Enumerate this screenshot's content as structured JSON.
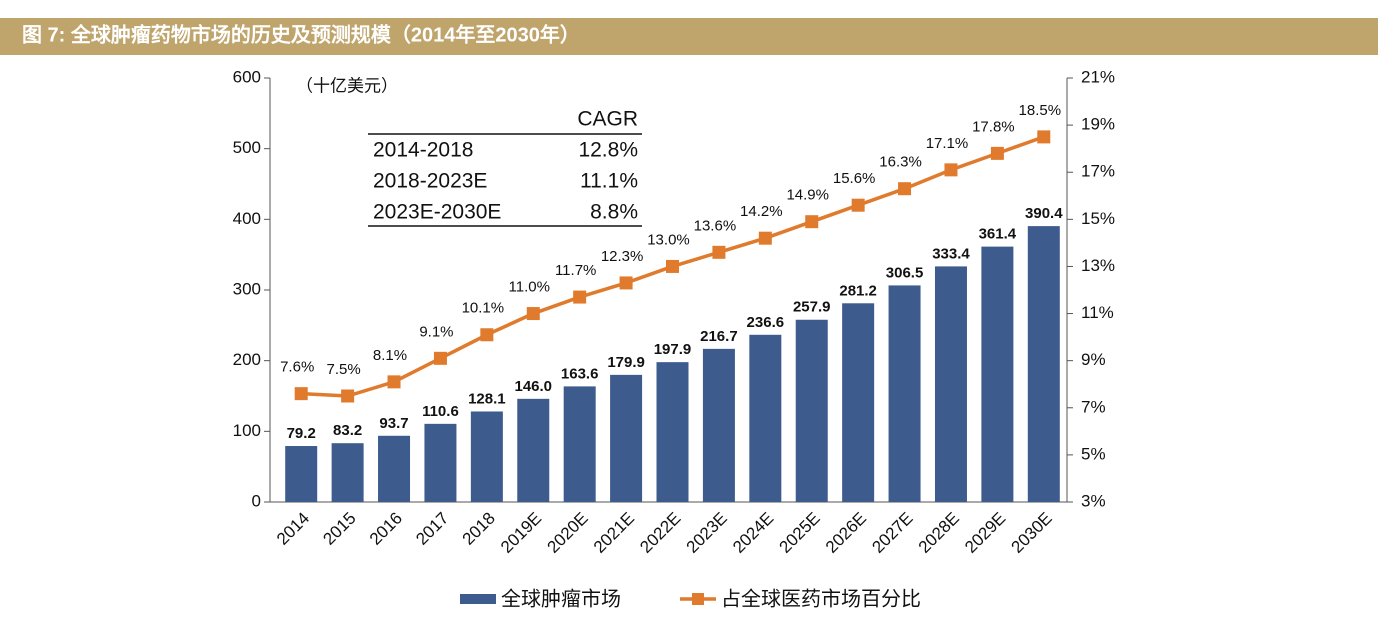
{
  "chart_data": {
    "type": "bar_line",
    "title": "图 7: 全球肿瘤药物市场的历史及预测规模（2014年至2030年）",
    "unit_note": "（十亿美元）",
    "categories": [
      "2014",
      "2015",
      "2016",
      "2017",
      "2018",
      "2019E",
      "2020E",
      "2021E",
      "2022E",
      "2023E",
      "2024E",
      "2025E",
      "2026E",
      "2027E",
      "2028E",
      "2029E",
      "2030E"
    ],
    "series": [
      {
        "name": "全球肿瘤市场",
        "color": "#3d5b8c",
        "type": "bar",
        "values": [
          79.2,
          83.2,
          93.7,
          110.6,
          128.1,
          146.0,
          163.6,
          179.9,
          197.9,
          216.7,
          236.6,
          257.9,
          281.2,
          306.5,
          333.4,
          361.4,
          390.4
        ],
        "value_labels": [
          "79.2",
          "83.2",
          "93.7",
          "110.6",
          "128.1",
          "146.0",
          "163.6",
          "179.9",
          "197.9",
          "216.7",
          "236.6",
          "257.9",
          "281.2",
          "306.5",
          "333.4",
          "361.4",
          "390.4"
        ]
      },
      {
        "name": "占全球医药市场百分比",
        "color": "#e07a2c",
        "type": "line",
        "axis": "y2",
        "values": [
          7.6,
          7.5,
          8.1,
          9.1,
          10.1,
          11.0,
          11.7,
          12.3,
          13.0,
          13.6,
          14.2,
          14.9,
          15.6,
          16.3,
          17.1,
          17.8,
          18.5
        ],
        "value_labels": [
          "7.6%",
          "7.5%",
          "8.1%",
          "9.1%",
          "10.1%",
          "11.0%",
          "11.7%",
          "12.3%",
          "13.0%",
          "13.6%",
          "14.2%",
          "14.9%",
          "15.6%",
          "16.3%",
          "17.1%",
          "17.8%",
          "18.5%"
        ]
      }
    ],
    "ylim": [
      0,
      600
    ],
    "yticks": [
      0,
      100,
      200,
      300,
      400,
      500,
      600
    ],
    "y2lim": [
      3,
      21
    ],
    "y2ticks": [
      {
        "value": 3,
        "label": "3%"
      },
      {
        "value": 5,
        "label": "5%"
      },
      {
        "value": 7,
        "label": "7%"
      },
      {
        "value": 9,
        "label": "9%"
      },
      {
        "value": 11,
        "label": "11%"
      },
      {
        "value": 13,
        "label": "13%"
      },
      {
        "value": 15,
        "label": "15%"
      },
      {
        "value": 17,
        "label": "17%"
      },
      {
        "value": 19,
        "label": "19%"
      },
      {
        "value": 21,
        "label": "21%"
      }
    ],
    "grid": false,
    "legend": "bottom",
    "table": {
      "header": "CAGR",
      "rows": [
        [
          "2014-2018",
          "12.8%"
        ],
        [
          "2018-2023E",
          "11.1%"
        ],
        [
          "2023E-2030E",
          "8.8%"
        ]
      ]
    }
  }
}
